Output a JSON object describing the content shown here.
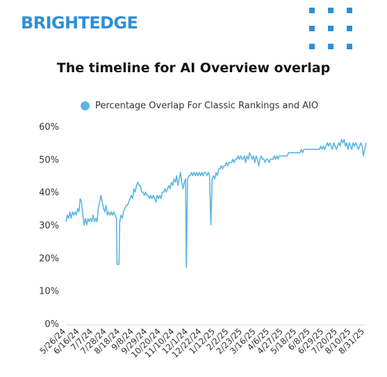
{
  "brand": {
    "logo_text": "BRIGHTEDGE",
    "color": "#2f8fd8",
    "decoration": "dot-grid-icon"
  },
  "chart_data": {
    "type": "line",
    "title": "The timeline for AI Overview overlap",
    "xlabel": "",
    "ylabel": "",
    "ylim": [
      0,
      60
    ],
    "yticks": [
      "0%",
      "10%",
      "20%",
      "30%",
      "40%",
      "50%",
      "60%"
    ],
    "grid": false,
    "legend_position": "top",
    "x_tick_labels": [
      "5/26/24",
      "6/16/24",
      "7/7/24",
      "7/28/24",
      "8/18/24",
      "9/8/24",
      "9/29/24",
      "10/20/24",
      "11/10/24",
      "12/1/24",
      "12/22/24",
      "1/12/25",
      "2/2/25",
      "2/23/25",
      "3/16/25",
      "4/6/25",
      "4/27/25",
      "5/18/25",
      "6/8/25",
      "6/29/25",
      "7/20/25",
      "8/10/25",
      "8/31/25"
    ],
    "series": [
      {
        "name": "Percentage Overlap For Classic Rankings and AIO",
        "color": "#5ab4e0",
        "points": [
          [
            "5/26/24",
            31
          ],
          [
            "5/28/24",
            33
          ],
          [
            "5/30/24",
            32
          ],
          [
            "6/1/24",
            34
          ],
          [
            "6/3/24",
            32
          ],
          [
            "6/5/24",
            34
          ],
          [
            "6/7/24",
            33
          ],
          [
            "6/9/24",
            34
          ],
          [
            "6/11/24",
            33
          ],
          [
            "6/13/24",
            35
          ],
          [
            "6/15/24",
            34
          ],
          [
            "6/17/24",
            38
          ],
          [
            "6/19/24",
            37
          ],
          [
            "6/21/24",
            33
          ],
          [
            "6/23/24",
            30
          ],
          [
            "6/25/24",
            32
          ],
          [
            "6/27/24",
            30
          ],
          [
            "6/29/24",
            32
          ],
          [
            "7/1/24",
            31
          ],
          [
            "7/3/24",
            32
          ],
          [
            "7/5/24",
            31
          ],
          [
            "7/7/24",
            33
          ],
          [
            "7/9/24",
            31
          ],
          [
            "7/11/24",
            32
          ],
          [
            "7/13/24",
            31
          ],
          [
            "7/15/24",
            35
          ],
          [
            "7/17/24",
            37
          ],
          [
            "7/19/24",
            39
          ],
          [
            "7/21/24",
            37
          ],
          [
            "7/23/24",
            35
          ],
          [
            "7/25/24",
            34
          ],
          [
            "7/27/24",
            36
          ],
          [
            "7/29/24",
            33
          ],
          [
            "7/31/24",
            34
          ],
          [
            "8/2/24",
            33
          ],
          [
            "8/4/24",
            34
          ],
          [
            "8/6/24",
            33
          ],
          [
            "8/8/24",
            34
          ],
          [
            "8/10/24",
            33
          ],
          [
            "8/12/24",
            32
          ],
          [
            "8/13/24",
            18
          ],
          [
            "8/16/24",
            18
          ],
          [
            "8/17/24",
            31
          ],
          [
            "8/19/24",
            33
          ],
          [
            "8/21/24",
            32
          ],
          [
            "8/23/24",
            34
          ],
          [
            "8/25/24",
            35
          ],
          [
            "8/27/24",
            36
          ],
          [
            "8/29/24",
            36
          ],
          [
            "8/31/24",
            37
          ],
          [
            "9/2/24",
            38
          ],
          [
            "9/4/24",
            39
          ],
          [
            "9/6/24",
            38
          ],
          [
            "9/8/24",
            41
          ],
          [
            "9/10/24",
            40
          ],
          [
            "9/12/24",
            42
          ],
          [
            "9/14/24",
            43
          ],
          [
            "9/16/24",
            42
          ],
          [
            "9/18/24",
            42
          ],
          [
            "9/20/24",
            40
          ],
          [
            "9/22/24",
            40
          ],
          [
            "9/24/24",
            39
          ],
          [
            "9/26/24",
            40
          ],
          [
            "9/28/24",
            39
          ],
          [
            "9/30/24",
            39
          ],
          [
            "10/2/24",
            38
          ],
          [
            "10/4/24",
            39
          ],
          [
            "10/6/24",
            38
          ],
          [
            "10/8/24",
            39
          ],
          [
            "10/10/24",
            38
          ],
          [
            "10/12/24",
            37
          ],
          [
            "10/14/24",
            39
          ],
          [
            "10/16/24",
            38
          ],
          [
            "10/18/24",
            39
          ],
          [
            "10/20/24",
            38
          ],
          [
            "10/22/24",
            40
          ],
          [
            "10/24/24",
            40
          ],
          [
            "10/26/24",
            41
          ],
          [
            "10/28/24",
            40
          ],
          [
            "10/30/24",
            41
          ],
          [
            "11/1/24",
            42
          ],
          [
            "11/3/24",
            41
          ],
          [
            "11/5/24",
            43
          ],
          [
            "11/7/24",
            42
          ],
          [
            "11/9/24",
            44
          ],
          [
            "11/11/24",
            43
          ],
          [
            "11/13/24",
            45
          ],
          [
            "11/15/24",
            42
          ],
          [
            "11/17/24",
            44
          ],
          [
            "11/19/24",
            46
          ],
          [
            "11/21/24",
            43
          ],
          [
            "11/23/24",
            41
          ],
          [
            "11/25/24",
            43
          ],
          [
            "11/27/24",
            44
          ],
          [
            "11/28/24",
            17
          ],
          [
            "11/30/24",
            44
          ],
          [
            "12/2/24",
            45
          ],
          [
            "12/4/24",
            45
          ],
          [
            "12/6/24",
            46
          ],
          [
            "12/8/24",
            45
          ],
          [
            "12/10/24",
            46
          ],
          [
            "12/12/24",
            45
          ],
          [
            "12/14/24",
            46
          ],
          [
            "12/16/24",
            45
          ],
          [
            "12/18/24",
            46
          ],
          [
            "12/20/24",
            45
          ],
          [
            "12/22/24",
            46
          ],
          [
            "12/24/24",
            45
          ],
          [
            "12/26/24",
            46
          ],
          [
            "12/28/24",
            46
          ],
          [
            "12/30/24",
            45
          ],
          [
            "1/1/25",
            46
          ],
          [
            "1/3/25",
            45
          ],
          [
            "1/5/25",
            30
          ],
          [
            "1/7/25",
            44
          ],
          [
            "1/9/25",
            45
          ],
          [
            "1/11/25",
            44
          ],
          [
            "1/13/25",
            46
          ],
          [
            "1/15/25",
            45
          ],
          [
            "1/17/25",
            47
          ],
          [
            "1/19/25",
            47
          ],
          [
            "1/21/25",
            48
          ],
          [
            "1/23/25",
            47
          ],
          [
            "1/25/25",
            48
          ],
          [
            "1/27/25",
            48
          ],
          [
            "1/29/25",
            49
          ],
          [
            "1/31/25",
            48
          ],
          [
            "2/2/25",
            49
          ],
          [
            "2/4/25",
            49
          ],
          [
            "2/6/25",
            49
          ],
          [
            "2/8/25",
            50
          ],
          [
            "2/10/25",
            49
          ],
          [
            "2/12/25",
            50
          ],
          [
            "2/14/25",
            50
          ],
          [
            "2/16/25",
            51
          ],
          [
            "2/18/25",
            50
          ],
          [
            "2/20/25",
            51
          ],
          [
            "2/22/25",
            50
          ],
          [
            "2/24/25",
            50
          ],
          [
            "2/26/25",
            51
          ],
          [
            "2/28/25",
            49
          ],
          [
            "3/2/25",
            51
          ],
          [
            "3/4/25",
            50
          ],
          [
            "3/6/25",
            52
          ],
          [
            "3/8/25",
            51
          ],
          [
            "3/10/25",
            50
          ],
          [
            "3/12/25",
            51
          ],
          [
            "3/14/25",
            49
          ],
          [
            "3/16/25",
            51
          ],
          [
            "3/18/25",
            50
          ],
          [
            "3/20/25",
            48
          ],
          [
            "3/22/25",
            50
          ],
          [
            "3/24/25",
            51
          ],
          [
            "3/26/25",
            50
          ],
          [
            "3/28/25",
            50
          ],
          [
            "3/30/25",
            49
          ],
          [
            "4/1/25",
            50
          ],
          [
            "4/3/25",
            50
          ],
          [
            "4/5/25",
            49
          ],
          [
            "4/7/25",
            50
          ],
          [
            "4/9/25",
            50
          ],
          [
            "4/11/25",
            50
          ],
          [
            "4/13/25",
            51
          ],
          [
            "4/15/25",
            50
          ],
          [
            "4/17/25",
            51
          ],
          [
            "4/19/25",
            50
          ],
          [
            "4/21/25",
            51
          ],
          [
            "4/23/25",
            51
          ],
          [
            "4/25/25",
            51
          ],
          [
            "4/27/25",
            51
          ],
          [
            "4/29/25",
            51
          ],
          [
            "5/1/25",
            51
          ],
          [
            "5/3/25",
            51
          ],
          [
            "5/5/25",
            52
          ],
          [
            "5/7/25",
            52
          ],
          [
            "5/9/25",
            52
          ],
          [
            "5/11/25",
            52
          ],
          [
            "5/13/25",
            52
          ],
          [
            "5/15/25",
            52
          ],
          [
            "5/17/25",
            52
          ],
          [
            "5/19/25",
            52
          ],
          [
            "5/21/25",
            52
          ],
          [
            "5/23/25",
            52
          ],
          [
            "5/25/25",
            53
          ],
          [
            "5/27/25",
            52
          ],
          [
            "5/29/25",
            53
          ],
          [
            "5/31/25",
            53
          ],
          [
            "6/2/25",
            53
          ],
          [
            "6/4/25",
            53
          ],
          [
            "6/6/25",
            53
          ],
          [
            "6/8/25",
            53
          ],
          [
            "6/10/25",
            53
          ],
          [
            "6/12/25",
            53
          ],
          [
            "6/14/25",
            53
          ],
          [
            "6/16/25",
            53
          ],
          [
            "6/18/25",
            53
          ],
          [
            "6/20/25",
            53
          ],
          [
            "6/22/25",
            53
          ],
          [
            "6/24/25",
            54
          ],
          [
            "6/26/25",
            53
          ],
          [
            "6/28/25",
            54
          ],
          [
            "6/30/25",
            53
          ],
          [
            "7/2/25",
            54
          ],
          [
            "7/4/25",
            55
          ],
          [
            "7/6/25",
            54
          ],
          [
            "7/8/25",
            55
          ],
          [
            "7/10/25",
            54
          ],
          [
            "7/12/25",
            53
          ],
          [
            "7/14/25",
            55
          ],
          [
            "7/16/25",
            54
          ],
          [
            "7/18/25",
            53
          ],
          [
            "7/20/25",
            54
          ],
          [
            "7/22/25",
            55
          ],
          [
            "7/24/25",
            54
          ],
          [
            "7/26/25",
            56
          ],
          [
            "7/28/25",
            55
          ],
          [
            "7/30/25",
            56
          ],
          [
            "8/1/25",
            54
          ],
          [
            "8/3/25",
            55
          ],
          [
            "8/5/25",
            53
          ],
          [
            "8/7/25",
            55
          ],
          [
            "8/9/25",
            54
          ],
          [
            "8/11/25",
            53
          ],
          [
            "8/13/25",
            55
          ],
          [
            "8/15/25",
            54
          ],
          [
            "8/17/25",
            55
          ],
          [
            "8/19/25",
            54
          ],
          [
            "8/21/25",
            53
          ],
          [
            "8/23/25",
            54
          ],
          [
            "8/25/25",
            55
          ],
          [
            "8/27/25",
            54
          ],
          [
            "8/29/25",
            51
          ],
          [
            "8/31/25",
            53
          ],
          [
            "9/2/25",
            55
          ]
        ]
      }
    ]
  }
}
